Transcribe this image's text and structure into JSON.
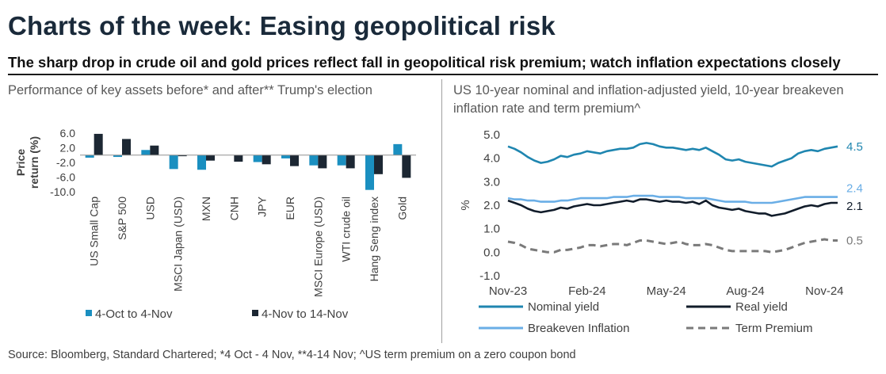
{
  "title": "Charts of the week: Easing geopolitical risk",
  "subtitle": "The sharp drop in crude oil and gold prices reflect fall in geopolitical risk premium; watch inflation expectations closely",
  "source": "Source: Bloomberg, Standard Chartered; *4 Oct - 4 Nov, **4-14 Nov; ^US term premium on a zero coupon bond",
  "chart_data": [
    {
      "type": "bar",
      "title": "Performance of key assets before* and after** Trump's election",
      "ylabel": "Price return (%)",
      "ylim": [
        -10,
        6
      ],
      "yticks": [
        "6.0",
        "2.0",
        "-2.0",
        "-6.0",
        "-10.0"
      ],
      "ytick_values": [
        6,
        2,
        -2,
        -6,
        -10
      ],
      "categories": [
        "US Small Cap",
        "S&P 500",
        "USD",
        "MSCI Japan (USD)",
        "MXN",
        "CNH",
        "JPY",
        "EUR",
        "MSCI Europe (USD)",
        "WTI crude oil",
        "Hang Seng index",
        "Gold"
      ],
      "series": [
        {
          "name": "4-Oct to 4-Nov",
          "color": "#1a8fc0",
          "values": [
            -0.7,
            -0.5,
            1.4,
            -3.8,
            -4.0,
            0.0,
            -1.9,
            -0.9,
            -2.8,
            -2.8,
            -9.5,
            3.0
          ]
        },
        {
          "name": "4-Nov to 14-Nov",
          "color": "#1c2733",
          "values": [
            5.8,
            4.4,
            2.6,
            -0.3,
            -1.5,
            -1.8,
            -2.5,
            -3.0,
            -3.6,
            -3.6,
            -5.2,
            -6.2
          ]
        }
      ]
    },
    {
      "type": "line",
      "title": "US 10-year nominal and inflation-adjusted yield, 10-year breakeven inflation rate and term premium^",
      "ylabel": "%",
      "ylim": [
        -1,
        5
      ],
      "yticks": [
        "5.0",
        "4.0",
        "3.0",
        "2.0",
        "1.0",
        "0.0",
        "-1.0"
      ],
      "ytick_values": [
        5,
        4,
        3,
        2,
        1,
        0,
        -1
      ],
      "xticks": [
        "Nov-23",
        "Feb-24",
        "May-24",
        "Aug-24",
        "Nov-24"
      ],
      "xtick_positions": [
        0,
        3,
        6,
        9,
        12
      ],
      "xlim": [
        0,
        12.5
      ],
      "x": [
        0,
        0.25,
        0.5,
        0.75,
        1,
        1.25,
        1.5,
        1.75,
        2,
        2.25,
        2.5,
        2.75,
        3,
        3.25,
        3.5,
        3.75,
        4,
        4.25,
        4.5,
        4.75,
        5,
        5.25,
        5.5,
        5.75,
        6,
        6.25,
        6.5,
        6.75,
        7,
        7.25,
        7.5,
        7.75,
        8,
        8.25,
        8.5,
        8.75,
        9,
        9.25,
        9.5,
        9.75,
        10,
        10.25,
        10.5,
        10.75,
        11,
        11.25,
        11.5,
        11.75,
        12,
        12.25,
        12.5
      ],
      "series": [
        {
          "name": "Nominal yield",
          "color": "#1f86b0",
          "dash": "solid",
          "end_label": "4.5",
          "values": [
            4.5,
            4.4,
            4.25,
            4.05,
            3.9,
            3.8,
            3.85,
            3.95,
            4.1,
            4.05,
            4.15,
            4.2,
            4.3,
            4.25,
            4.2,
            4.3,
            4.35,
            4.4,
            4.4,
            4.45,
            4.6,
            4.65,
            4.6,
            4.5,
            4.45,
            4.45,
            4.4,
            4.35,
            4.4,
            4.35,
            4.45,
            4.3,
            4.15,
            3.95,
            3.9,
            3.95,
            3.85,
            3.8,
            3.75,
            3.7,
            3.65,
            3.8,
            3.9,
            4.0,
            4.2,
            4.3,
            4.35,
            4.3,
            4.4,
            4.45,
            4.5
          ]
        },
        {
          "name": "Real yield",
          "color": "#111c2a",
          "dash": "solid",
          "end_label": "2.1",
          "values": [
            2.2,
            2.1,
            2.0,
            1.85,
            1.75,
            1.7,
            1.75,
            1.8,
            1.9,
            1.85,
            1.95,
            2.0,
            2.05,
            2.0,
            2.0,
            2.05,
            2.1,
            2.15,
            2.2,
            2.15,
            2.25,
            2.25,
            2.2,
            2.15,
            2.2,
            2.15,
            2.15,
            2.1,
            2.15,
            2.05,
            2.2,
            2.0,
            1.9,
            1.85,
            1.8,
            1.85,
            1.75,
            1.7,
            1.65,
            1.65,
            1.55,
            1.6,
            1.65,
            1.75,
            1.85,
            1.95,
            2.0,
            1.95,
            2.05,
            2.1,
            2.1
          ]
        },
        {
          "name": "Breakeven Inflation",
          "color": "#6aaee6",
          "dash": "solid",
          "end_label": "2.4",
          "values": [
            2.3,
            2.25,
            2.25,
            2.2,
            2.2,
            2.15,
            2.15,
            2.15,
            2.2,
            2.2,
            2.25,
            2.3,
            2.3,
            2.3,
            2.3,
            2.3,
            2.35,
            2.35,
            2.35,
            2.4,
            2.4,
            2.4,
            2.4,
            2.35,
            2.35,
            2.35,
            2.35,
            2.3,
            2.3,
            2.3,
            2.3,
            2.25,
            2.2,
            2.15,
            2.15,
            2.15,
            2.15,
            2.1,
            2.1,
            2.1,
            2.1,
            2.15,
            2.2,
            2.25,
            2.3,
            2.35,
            2.35,
            2.35,
            2.35,
            2.35,
            2.35
          ]
        },
        {
          "name": "Term Premium",
          "color": "#7a7a7a",
          "dash": "dashed",
          "end_label": "0.5",
          "values": [
            0.45,
            0.4,
            0.3,
            0.15,
            0.1,
            0.05,
            0.0,
            0.0,
            0.1,
            0.1,
            0.15,
            0.2,
            0.3,
            0.3,
            0.25,
            0.3,
            0.35,
            0.35,
            0.3,
            0.4,
            0.5,
            0.5,
            0.45,
            0.4,
            0.35,
            0.4,
            0.45,
            0.35,
            0.3,
            0.3,
            0.35,
            0.3,
            0.2,
            0.1,
            0.05,
            0.05,
            0.05,
            0.05,
            0.05,
            0.05,
            0.0,
            0.05,
            0.1,
            0.2,
            0.3,
            0.4,
            0.45,
            0.5,
            0.55,
            0.5,
            0.5
          ]
        }
      ]
    }
  ]
}
